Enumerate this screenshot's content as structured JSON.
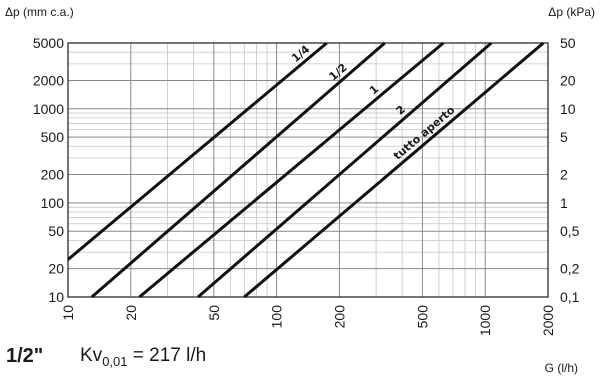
{
  "chart_data": {
    "type": "line",
    "x_scale": "log",
    "y_scale": "log",
    "x_label": "G (l/h)",
    "y_label_left": "Δp (mm c.a.)",
    "y_label_right": "Δp (kPa)",
    "xlim": [
      10,
      2000
    ],
    "ylim": [
      10,
      5000
    ],
    "x_ticks": [
      10,
      20,
      50,
      100,
      200,
      500,
      1000,
      2000
    ],
    "x_tick_labels": [
      "10",
      "20",
      "50",
      "100",
      "200",
      "500",
      "1000",
      "2000"
    ],
    "y_ticks": [
      10,
      20,
      50,
      100,
      200,
      500,
      1000,
      2000,
      5000
    ],
    "y_tick_labels_left": [
      "10",
      "20",
      "50",
      "100",
      "200",
      "500",
      "1000",
      "2000",
      "5000"
    ],
    "y_tick_labels_right": [
      "0,1",
      "0,2",
      "0,5",
      "1",
      "2",
      "5",
      "10",
      "20",
      "50"
    ],
    "grid": true,
    "series": [
      {
        "name": "1/4",
        "x": [
          10,
          174
        ],
        "y": [
          25,
          5000
        ]
      },
      {
        "name": "1/2",
        "x": [
          13,
          330
        ],
        "y": [
          10,
          5000
        ]
      },
      {
        "name": "1",
        "x": [
          22,
          630
        ],
        "y": [
          10,
          5000
        ]
      },
      {
        "name": "2",
        "x": [
          42,
          1070
        ],
        "y": [
          10,
          5000
        ]
      },
      {
        "name": "tutto aperto",
        "x": [
          70,
          1900
        ],
        "y": [
          10,
          5000
        ]
      }
    ]
  },
  "footer": {
    "model": "1/2\"",
    "kv_prefix": "Kv",
    "kv_sub": "0,01",
    "kv_value": " = 217 l/h"
  }
}
